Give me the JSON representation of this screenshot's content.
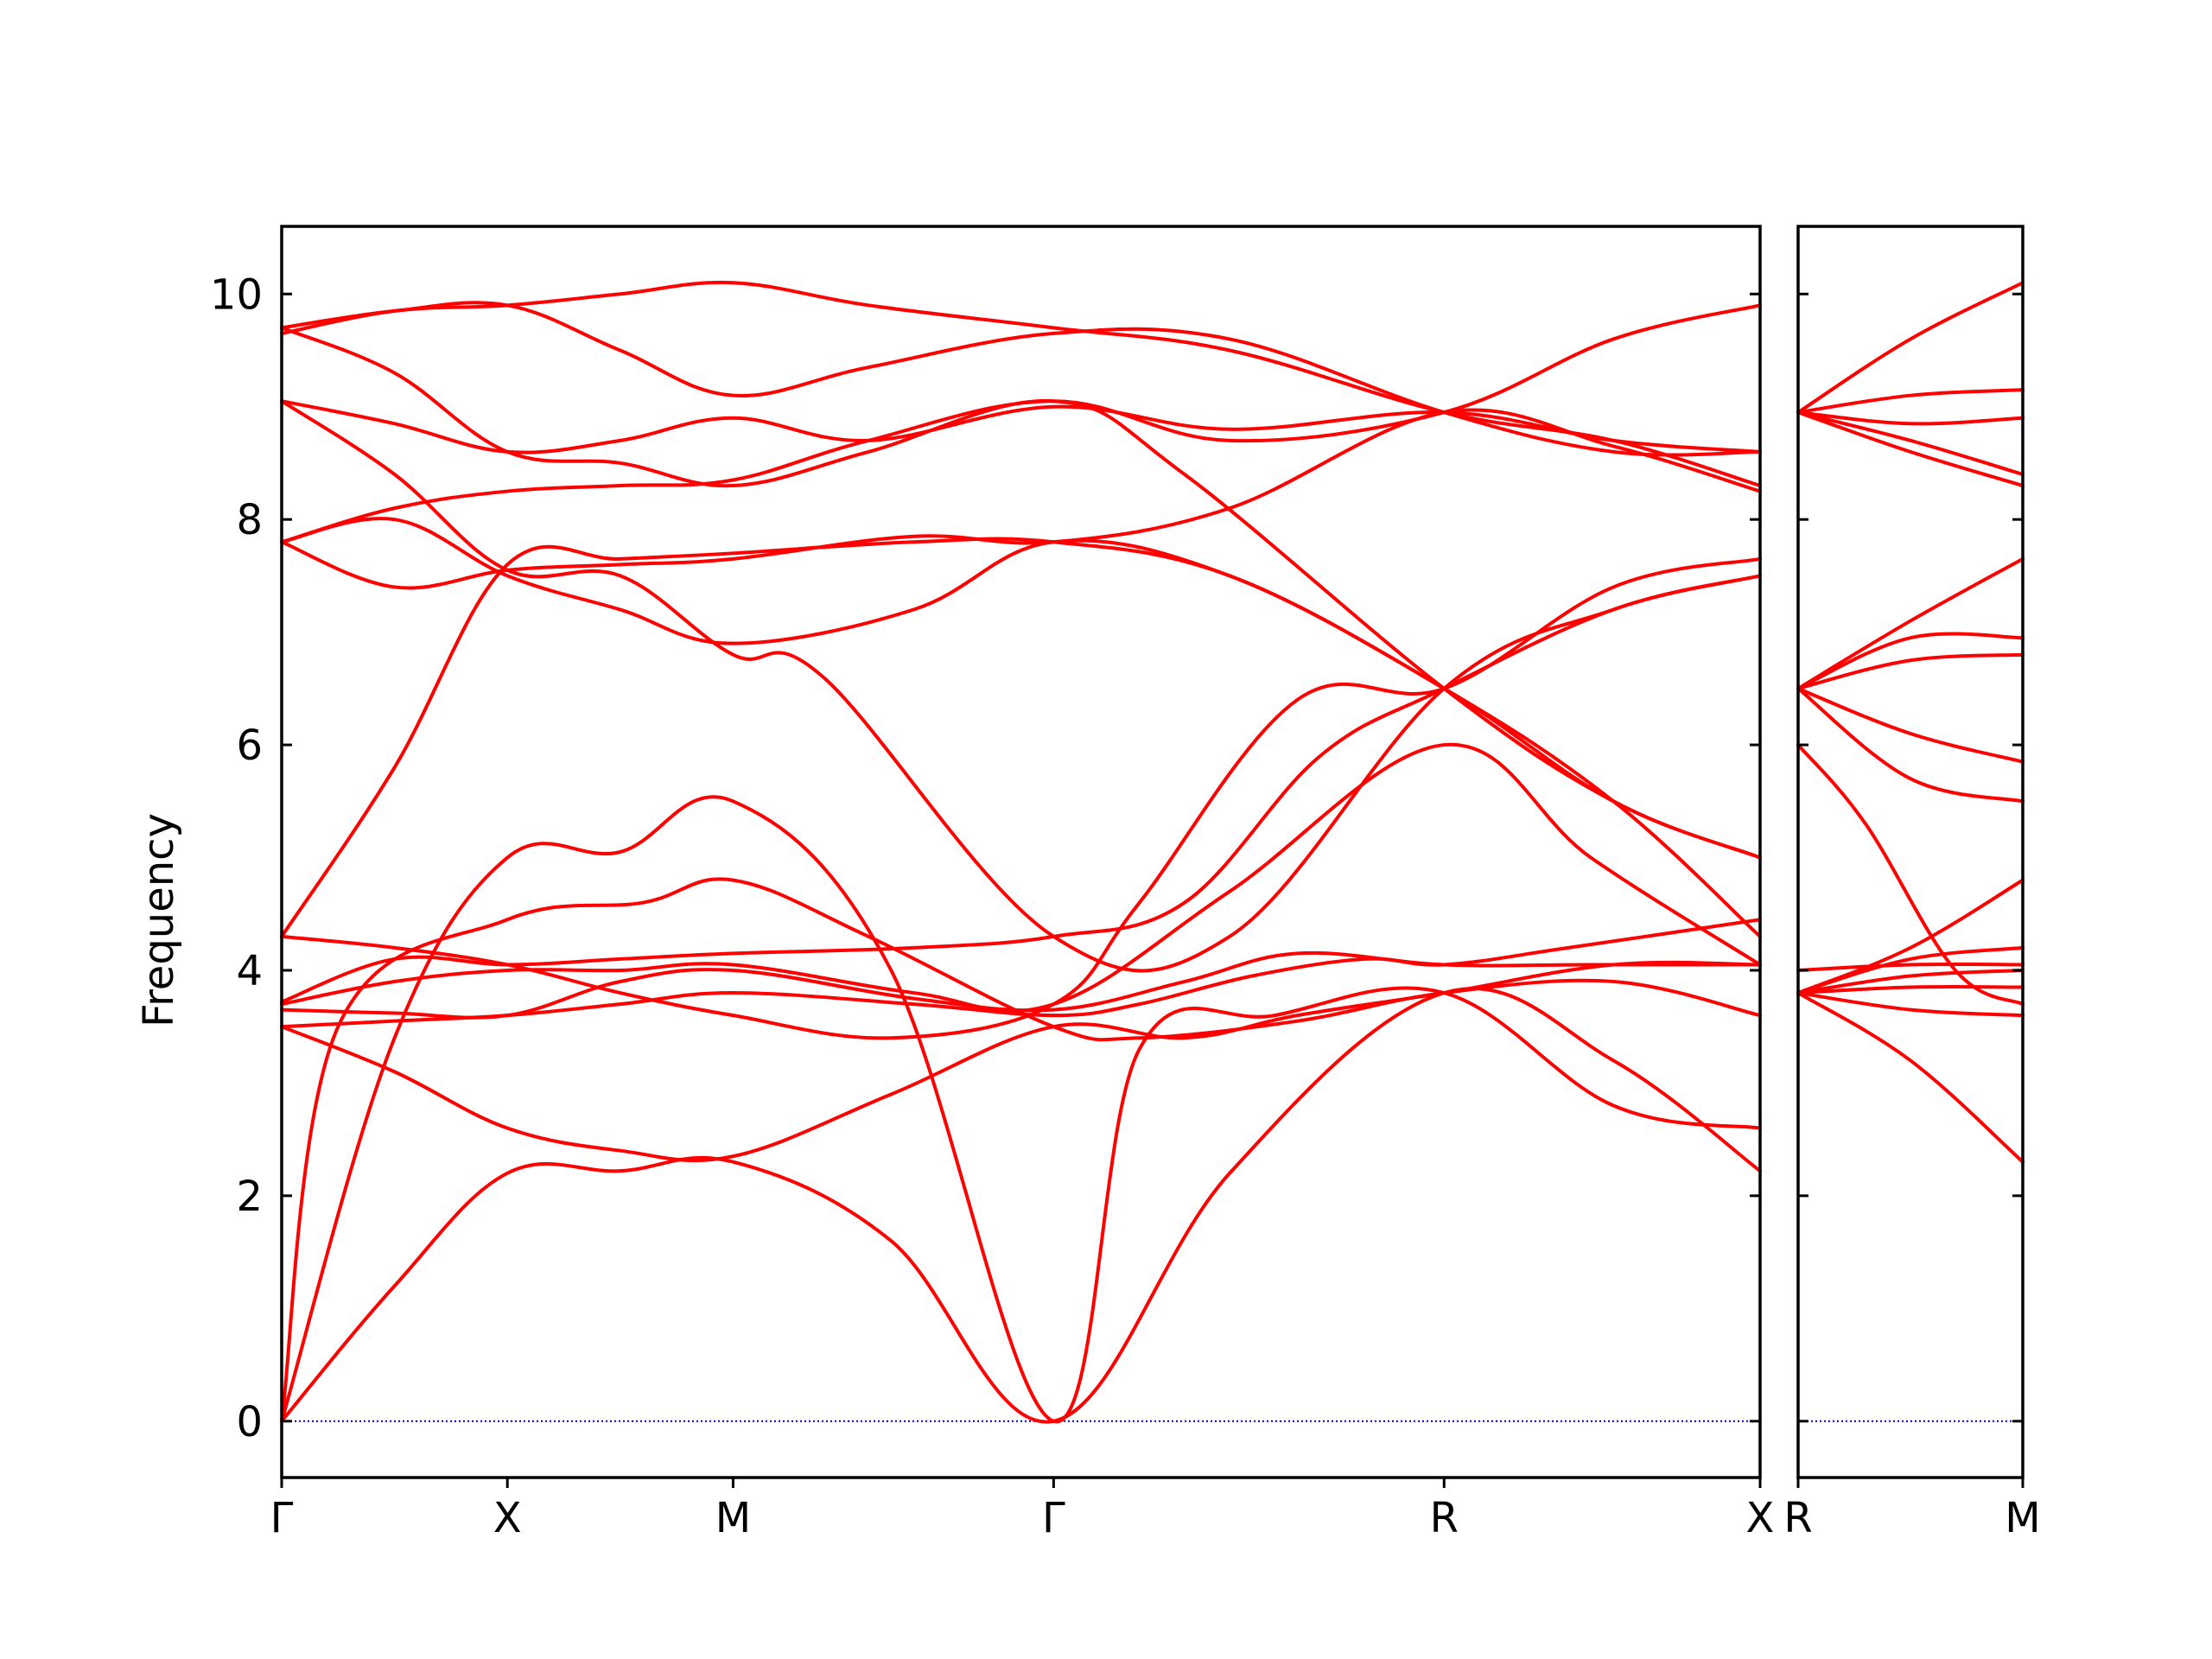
{
  "chart_data": {
    "type": "line",
    "ylabel": "Frequency",
    "ylim": [
      -0.5,
      10.6
    ],
    "yticks": [
      0,
      2,
      4,
      6,
      8,
      10
    ],
    "grid": false,
    "legend": "none",
    "colors": {
      "bands": "#ff0000",
      "zero_line": "#0000cc",
      "axes": "#000000"
    },
    "panels": [
      {
        "id": "left",
        "x_range": [
          0,
          6.55
        ],
        "high_symmetry_points": [
          {
            "label": "Γ",
            "x": 0
          },
          {
            "label": "X",
            "x": 1.0
          },
          {
            "label": "M",
            "x": 2.0
          },
          {
            "label": "Γ",
            "x": 3.42
          },
          {
            "label": "R",
            "x": 5.15
          },
          {
            "label": "X",
            "x": 6.55
          }
        ],
        "bands": [
          {
            "x": [
              0,
              0.5,
              1.0,
              1.5,
              2.0,
              2.7,
              3.42,
              4.2,
              5.15,
              5.9,
              6.55
            ],
            "y": [
              0,
              1.2,
              2.2,
              2.22,
              2.3,
              1.6,
              0,
              2.2,
              3.8,
              3.2,
              2.22
            ]
          },
          {
            "x": [
              0,
              0.5,
              1.0,
              1.5,
              2.0,
              2.7,
              3.42,
              3.8,
              4.4,
              5.15,
              5.9,
              6.55
            ],
            "y": [
              0,
              3.4,
              5.0,
              5.05,
              5.5,
              4.0,
              0,
              3.3,
              3.6,
              3.8,
              2.8,
              2.6
            ]
          },
          {
            "x": [
              0,
              0.25,
              1.0,
              1.6,
              2.0,
              2.6,
              3.42,
              3.8,
              4.5,
              5.15,
              5.9,
              6.55
            ],
            "y": [
              0,
              3.5,
              4.45,
              4.6,
              4.8,
              4.3,
              3.5,
              3.4,
              3.55,
              3.8,
              3.9,
              3.6
            ]
          },
          {
            "x": [
              0,
              0.5,
              1.0,
              1.5,
              2.0,
              2.7,
              3.42,
              4.0,
              4.5,
              5.15,
              5.9,
              6.55
            ],
            "y": [
              3.5,
              3.1,
              2.6,
              2.4,
              2.35,
              2.9,
              3.5,
              3.4,
              3.6,
              3.8,
              4.05,
              4.05
            ]
          },
          {
            "x": [
              0,
              0.5,
              1.0,
              1.5,
              2.0,
              2.8,
              3.42,
              3.8,
              4.3,
              4.8,
              5.15,
              5.7,
              6.55
            ],
            "y": [
              3.5,
              3.55,
              3.6,
              3.7,
              3.8,
              3.7,
              3.6,
              3.7,
              3.95,
              4.1,
              4.05,
              4.2,
              4.45
            ]
          },
          {
            "x": [
              0,
              0.5,
              1.0,
              1.5,
              2.0,
              2.8,
              3.42,
              4.0,
              4.5,
              5.15,
              5.8,
              6.55
            ],
            "y": [
              3.65,
              3.62,
              3.6,
              3.9,
              4.0,
              3.75,
              3.65,
              3.9,
              4.15,
              4.05,
              4.05,
              4.05
            ]
          },
          {
            "x": [
              0,
              0.5,
              1.0,
              1.5,
              2.0,
              2.8,
              3.42,
              4.2,
              5.15,
              5.8,
              6.55
            ],
            "y": [
              3.7,
              3.9,
              4.0,
              4.0,
              4.05,
              3.8,
              3.7,
              4.7,
              6.0,
              5.0,
              4.05
            ]
          },
          {
            "x": [
              0,
              0.5,
              1.0,
              1.5,
              2.0,
              2.8,
              3.42,
              4.0,
              4.6,
              5.15,
              5.9,
              6.55
            ],
            "y": [
              3.72,
              4.1,
              4.05,
              4.1,
              4.15,
              4.2,
              4.3,
              4.6,
              5.9,
              6.5,
              7.2,
              7.5
            ]
          },
          {
            "x": [
              0,
              0.5,
              1.0,
              1.5,
              2.0,
              2.7,
              3.42,
              3.8,
              4.5,
              5.15,
              5.9,
              6.55
            ],
            "y": [
              4.3,
              4.2,
              4.05,
              3.8,
              3.6,
              3.4,
              3.7,
              4.6,
              6.4,
              6.5,
              7.4,
              7.65
            ]
          },
          {
            "x": [
              0,
              0.5,
              1.0,
              1.5,
              2.0,
              2.8,
              3.42,
              4.2,
              5.15,
              5.9,
              6.55
            ],
            "y": [
              4.3,
              5.8,
              7.6,
              7.65,
              7.7,
              7.8,
              7.8,
              7.5,
              6.5,
              5.5,
              5.0
            ]
          },
          {
            "x": [
              0,
              0.5,
              1.0,
              1.5,
              2.0,
              2.8,
              3.42,
              4.2,
              5.15,
              5.9,
              6.55
            ],
            "y": [
              7.8,
              7.4,
              7.55,
              7.6,
              7.65,
              7.85,
              7.8,
              8.1,
              8.95,
              8.65,
              8.25
            ]
          },
          {
            "x": [
              0,
              0.5,
              1.0,
              1.5,
              2.0,
              2.8,
              3.42,
              4.2,
              5.15,
              5.9,
              6.55
            ],
            "y": [
              7.8,
              8.0,
              7.5,
              7.2,
              6.9,
              7.2,
              7.8,
              7.5,
              6.5,
              5.5,
              4.3
            ]
          },
          {
            "x": [
              0,
              0.5,
              1.0,
              1.5,
              2.0,
              2.6,
              3.42,
              4.2,
              5.15,
              5.9,
              6.55
            ],
            "y": [
              7.8,
              8.1,
              8.25,
              8.3,
              8.35,
              8.7,
              9.05,
              8.7,
              8.95,
              9.6,
              9.9
            ]
          },
          {
            "x": [
              0,
              0.5,
              1.0,
              1.5,
              2.0,
              2.6,
              3.42,
              4.2,
              5.15,
              5.9,
              6.55
            ],
            "y": [
              9.05,
              8.85,
              8.6,
              8.7,
              8.9,
              8.7,
              9.0,
              8.8,
              8.95,
              8.7,
              8.6
            ]
          },
          {
            "x": [
              0,
              0.5,
              1.0,
              1.5,
              2.0,
              2.4,
              3.42,
              4.2,
              5.15,
              5.9,
              6.55
            ],
            "y": [
              9.05,
              8.4,
              7.55,
              7.5,
              6.8,
              6.6,
              4.3,
              4.3,
              6.5,
              7.2,
              7.5
            ]
          },
          {
            "x": [
              0,
              0.5,
              1.0,
              1.5,
              2.0,
              2.6,
              3.42,
              4.0,
              5.15,
              5.9,
              6.55
            ],
            "y": [
              9.7,
              9.3,
              8.6,
              8.5,
              8.3,
              8.6,
              9.05,
              8.4,
              6.5,
              5.5,
              5.0
            ]
          },
          {
            "x": [
              0,
              0.5,
              1.0,
              1.5,
              2.0,
              2.6,
              3.42,
              4.2,
              5.15,
              5.9,
              6.55
            ],
            "y": [
              9.7,
              9.85,
              9.9,
              9.5,
              9.1,
              9.35,
              9.65,
              9.6,
              8.95,
              8.6,
              8.6
            ]
          },
          {
            "x": [
              0,
              0.5,
              1.0,
              1.5,
              2.0,
              2.6,
              3.42,
              4.2,
              5.15,
              5.9,
              6.55
            ],
            "y": [
              9.65,
              9.85,
              9.9,
              10.0,
              10.1,
              9.9,
              9.7,
              9.5,
              8.95,
              8.7,
              8.3
            ]
          }
        ]
      },
      {
        "id": "right",
        "x_range": [
          0,
          1.0
        ],
        "high_symmetry_points": [
          {
            "label": "R",
            "x": 0
          },
          {
            "label": "M",
            "x": 1.0
          }
        ],
        "bands": [
          {
            "x": [
              0,
              0.5,
              1.0
            ],
            "y": [
              3.8,
              3.2,
              2.3
            ]
          },
          {
            "x": [
              0,
              0.5,
              1.0
            ],
            "y": [
              3.8,
              3.65,
              3.6
            ]
          },
          {
            "x": [
              0,
              0.5,
              1.0
            ],
            "y": [
              3.8,
              3.85,
              3.85
            ]
          },
          {
            "x": [
              0,
              0.5,
              1.0
            ],
            "y": [
              3.8,
              3.95,
              4.0
            ]
          },
          {
            "x": [
              0,
              0.5,
              1.0
            ],
            "y": [
              4.0,
              4.05,
              4.05
            ]
          },
          {
            "x": [
              0,
              0.5,
              1.0
            ],
            "y": [
              3.8,
              4.1,
              4.2
            ]
          },
          {
            "x": [
              0,
              0.5,
              1.0
            ],
            "y": [
              3.8,
              4.2,
              4.8
            ]
          },
          {
            "x": [
              0,
              0.3,
              0.7,
              1.0
            ],
            "y": [
              6.0,
              5.3,
              4.0,
              3.7
            ]
          },
          {
            "x": [
              0,
              0.5,
              1.0
            ],
            "y": [
              6.5,
              5.7,
              5.5
            ]
          },
          {
            "x": [
              0,
              0.5,
              1.0
            ],
            "y": [
              6.5,
              6.1,
              5.85
            ]
          },
          {
            "x": [
              0,
              0.5,
              1.0
            ],
            "y": [
              6.5,
              6.75,
              6.8
            ]
          },
          {
            "x": [
              0,
              0.5,
              1.0
            ],
            "y": [
              6.5,
              6.95,
              6.95
            ]
          },
          {
            "x": [
              0,
              0.5,
              1.0
            ],
            "y": [
              6.5,
              7.1,
              7.65
            ]
          },
          {
            "x": [
              0,
              0.5,
              1.0
            ],
            "y": [
              8.95,
              8.6,
              8.3
            ]
          },
          {
            "x": [
              0,
              0.5,
              1.0
            ],
            "y": [
              8.95,
              8.7,
              8.4
            ]
          },
          {
            "x": [
              0,
              0.5,
              1.0
            ],
            "y": [
              8.95,
              8.85,
              8.9
            ]
          },
          {
            "x": [
              0,
              0.5,
              1.0
            ],
            "y": [
              8.95,
              9.1,
              9.15
            ]
          },
          {
            "x": [
              0,
              0.5,
              1.0
            ],
            "y": [
              8.95,
              9.6,
              10.1
            ]
          }
        ]
      }
    ]
  }
}
